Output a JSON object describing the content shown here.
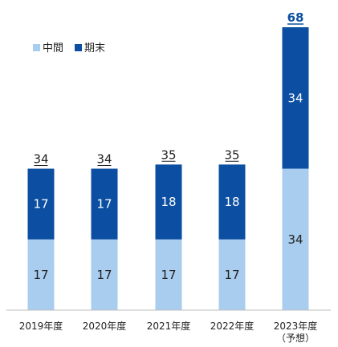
{
  "chart_data": {
    "type": "bar",
    "stacked": true,
    "categories": [
      "2019年度",
      "2020年度",
      "2021年度",
      "2022年度",
      "2023年度"
    ],
    "category_notes": [
      "",
      "",
      "",
      "",
      "（予想）"
    ],
    "series": [
      {
        "name": "中間",
        "color": "#a9cdef",
        "label_color": "#222222",
        "values": [
          17,
          17,
          17,
          17,
          34
        ]
      },
      {
        "name": "期末",
        "color": "#0b4ea2",
        "label_color": "#ffffff",
        "values": [
          17,
          17,
          18,
          18,
          34
        ]
      }
    ],
    "totals": [
      "34",
      "34",
      "35",
      "35",
      "68"
    ],
    "highlight_total_index": 4,
    "highlight_color": "#0b4ea2",
    "ylim": [
      0,
      68
    ],
    "legend_position": "top-left",
    "grid": false,
    "title": "",
    "xlabel": "",
    "ylabel": ""
  }
}
